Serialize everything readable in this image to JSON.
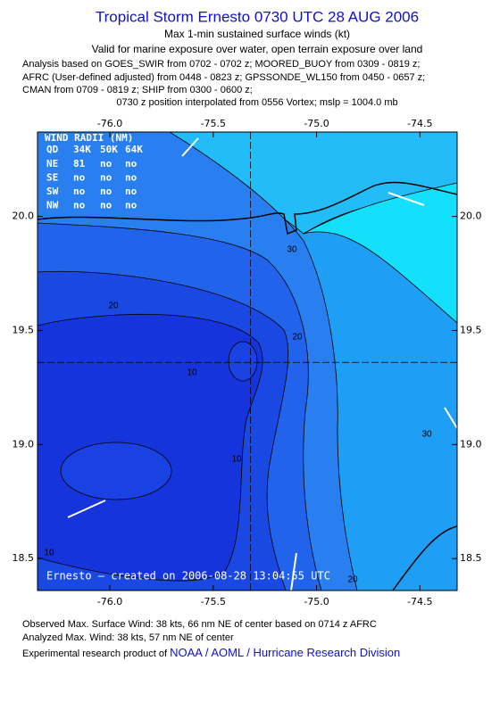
{
  "title": "Tropical Storm Ernesto 0730 UTC 28 AUG 2006",
  "subtitle": "Max 1-min sustained surface winds (kt)",
  "valid_line": "Valid for marine exposure over water, open terrain exposure over land",
  "analysis_lines": [
    "Analysis based on  GOES_SWIR from 0702 - 0702 z;  MOORED_BUOY from 0309 - 0819 z;",
    "AFRC (User-defined adjusted) from 0448 - 0823 z;  GPSSONDE_WL150 from 0450 - 0657 z;",
    "CMAN from 0709 - 0819 z;  SHIP from 0300 - 0600 z;",
    "0730 z position interpolated from 0556 Vortex; mslp = 1004.0 mb"
  ],
  "chart_data": {
    "type": "contour",
    "xlim": [
      -76.35,
      -74.32
    ],
    "ylim": [
      18.36,
      20.37
    ],
    "xticks": [
      {
        "value": -76,
        "label": "-76.0"
      },
      -75.5,
      {
        "value": -75,
        "label": "-75.0"
      },
      -74.5
    ],
    "yticks": [
      18.5,
      {
        "value": 19,
        "label": "19.0"
      },
      19.5,
      {
        "value": 20,
        "label": "20.0"
      }
    ],
    "contour_labels": [
      30,
      20,
      20,
      10,
      10,
      10,
      20,
      30
    ],
    "center": {
      "x": -75.32,
      "y": 19.36
    },
    "credit": "Ernesto – created on 2006-08-28 13:04:55 UTC"
  },
  "wind_radii": {
    "title": "WIND RADII (NM)",
    "header": [
      "QD",
      "34K",
      "50K",
      "64K"
    ],
    "rows": [
      [
        "NE",
        "81",
        "no",
        "no"
      ],
      [
        "SE",
        "no",
        "no",
        "no"
      ],
      [
        "SW",
        "no",
        "no",
        "no"
      ],
      [
        "NW",
        "no",
        "no",
        "no"
      ]
    ]
  },
  "footer": {
    "observed": "Observed Max. Surface Wind: 38 kts, 66 nm NE of center based on 0714 z AFRC",
    "analyzed": "Analyzed Max. Wind: 38 kts, 57 nm NE of center",
    "product_prefix": "Experimental research product of",
    "product_link": "NOAA / AOML / Hurricane Research Division"
  }
}
